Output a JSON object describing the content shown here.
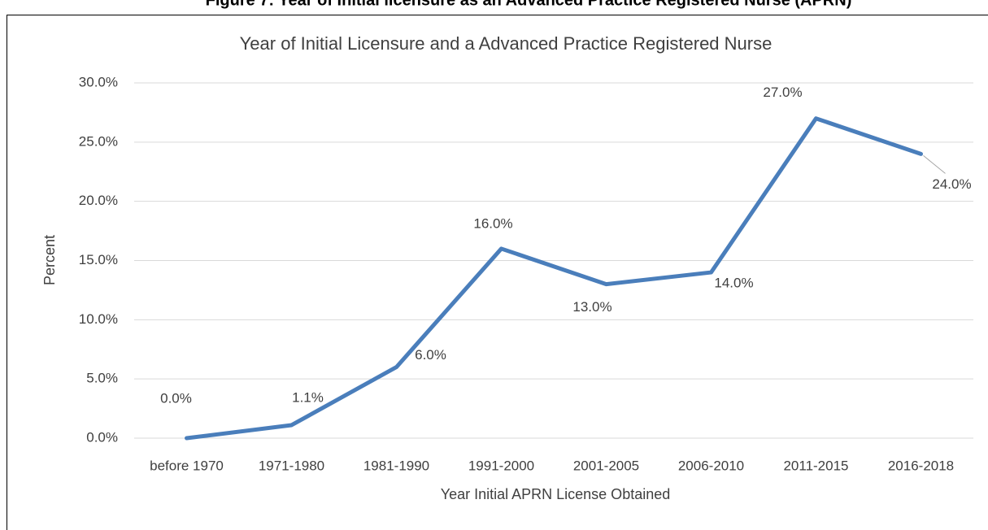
{
  "caption": "Figure 7: Year of Initial licensure as an Advanced Practice Registered Nurse (APRN)",
  "chart_data": {
    "type": "line",
    "title": "Year of Initial Licensure and a Advanced Practice Registered Nurse",
    "x_label": "Year Initial APRN License Obtained",
    "y_label": "Percent",
    "categories": [
      "before 1970",
      "1971-1980",
      "1981-1990",
      "1991-2000",
      "2001-2005",
      "2006-2010",
      "2011-2015",
      "2016-2018"
    ],
    "series": [
      {
        "name": "Percent",
        "color": "#4a7ebb",
        "values": [
          0,
          1.1,
          6,
          16,
          13,
          14,
          27,
          24
        ],
        "value_labels": [
          "0.0%",
          "1.1%",
          "6.0%",
          "16.0%",
          "13.0%",
          "14.0%",
          "27.0%",
          "24.0%"
        ]
      }
    ],
    "ylim": [
      0,
      30
    ],
    "yticks": [
      {
        "value": 0,
        "label": "0.0%"
      },
      {
        "value": 5,
        "label": "5.0%"
      },
      {
        "value": 10,
        "label": "10.0%"
      },
      {
        "value": 15,
        "label": "15.0%"
      },
      {
        "value": 20,
        "label": "20.0%"
      },
      {
        "value": 25,
        "label": "25.0%"
      },
      {
        "value": 30,
        "label": "30.0%"
      }
    ],
    "grid": true
  }
}
